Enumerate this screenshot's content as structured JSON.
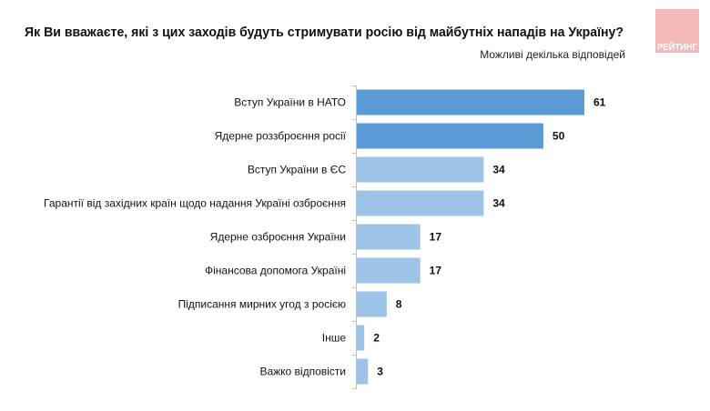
{
  "logo": {
    "text": "РЕЙТИНГ",
    "color": "#f4b8b8"
  },
  "chart_data": {
    "type": "bar",
    "orientation": "horizontal",
    "title": "Як Ви вважаєте, які з цих заходів будуть стримувати росію від майбутніх нападів на Україну?",
    "subtitle": "Можливі декілька відповідей",
    "categories": [
      "Вступ України в НАТО",
      "Ядерне роззброєння росії",
      "Вступ України в ЄС",
      "Гарантії від західних країн щодо надання Україні озброєння",
      "Ядерне озброєння України",
      "Фінансова допомога Україні",
      "Підписання мирних угод з росією",
      "Інше",
      "Важко відповісти"
    ],
    "values": [
      61,
      50,
      34,
      34,
      17,
      17,
      8,
      2,
      3
    ],
    "colors": [
      "#5b9bd5",
      "#5b9bd5",
      "#9dc3e6",
      "#9dc3e6",
      "#9dc3e6",
      "#9dc3e6",
      "#9dc3e6",
      "#9dc3e6",
      "#9dc3e6"
    ],
    "xlim": [
      0,
      70
    ],
    "grid": false,
    "legend": "none"
  }
}
